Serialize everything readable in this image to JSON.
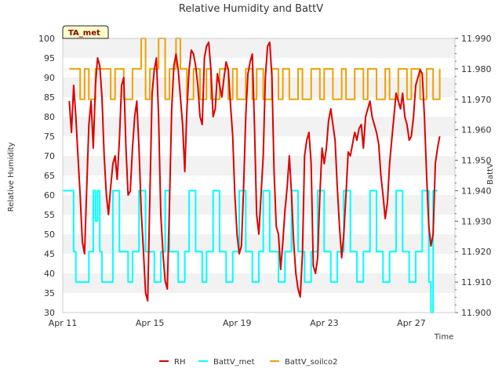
{
  "chart_data": {
    "type": "line",
    "title": "Relative Humidity and BattV",
    "xlabel": "Time",
    "ylabel": "Relative Humidity",
    "y2label": "BattV",
    "badge": "TA_met",
    "x_ticks": [
      "Apr 11",
      "Apr 15",
      "Apr 19",
      "Apr 23",
      "Apr 27"
    ],
    "y_ticks": [
      30,
      35,
      40,
      45,
      50,
      55,
      60,
      65,
      70,
      75,
      80,
      85,
      90,
      95,
      100
    ],
    "y2_ticks": [
      "11.900",
      "11.910",
      "11.920",
      "11.930",
      "11.940",
      "11.950",
      "11.960",
      "11.970",
      "11.980",
      "11.990"
    ],
    "xlim_days": [
      11,
      29
    ],
    "ylim": [
      30,
      100
    ],
    "y2lim": [
      11.9,
      11.99
    ],
    "grid": true,
    "legend_position": "bottom",
    "series": [
      {
        "name": "RH",
        "axis": "left",
        "color": "#dd0000",
        "x": [
          11.3,
          11.4,
          11.5,
          11.6,
          11.7,
          11.8,
          11.9,
          12.0,
          12.1,
          12.2,
          12.3,
          12.4,
          12.5,
          12.6,
          12.7,
          12.8,
          12.9,
          13.0,
          13.1,
          13.2,
          13.3,
          13.4,
          13.5,
          13.6,
          13.7,
          13.8,
          13.9,
          14.0,
          14.1,
          14.2,
          14.3,
          14.4,
          14.5,
          14.6,
          14.7,
          14.8,
          14.9,
          15.0,
          15.1,
          15.2,
          15.3,
          15.4,
          15.5,
          15.6,
          15.7,
          15.8,
          15.9,
          16.0,
          16.1,
          16.2,
          16.3,
          16.4,
          16.5,
          16.6,
          16.7,
          16.8,
          16.9,
          17.0,
          17.1,
          17.2,
          17.3,
          17.4,
          17.5,
          17.6,
          17.7,
          17.8,
          17.9,
          18.0,
          18.1,
          18.2,
          18.3,
          18.4,
          18.5,
          18.6,
          18.7,
          18.8,
          18.9,
          19.0,
          19.1,
          19.2,
          19.3,
          19.4,
          19.5,
          19.6,
          19.7,
          19.8,
          19.9,
          20.0,
          20.1,
          20.2,
          20.3,
          20.4,
          20.5,
          20.6,
          20.7,
          20.8,
          20.9,
          21.0,
          21.1,
          21.2,
          21.3,
          21.4,
          21.5,
          21.6,
          21.7,
          21.8,
          21.9,
          22.0,
          22.1,
          22.2,
          22.3,
          22.4,
          22.5,
          22.6,
          22.7,
          22.8,
          22.9,
          23.0,
          23.1,
          23.2,
          23.3,
          23.4,
          23.5,
          23.6,
          23.7,
          23.8,
          23.9,
          24.0,
          24.1,
          24.2,
          24.3,
          24.4,
          24.5,
          24.6,
          24.7,
          24.8,
          24.9,
          25.0,
          25.1,
          25.2,
          25.3,
          25.4,
          25.5,
          25.6,
          25.7,
          25.8,
          25.9,
          26.0,
          26.1,
          26.2,
          26.3,
          26.4,
          26.5,
          26.6,
          26.7,
          26.8,
          26.9,
          27.0,
          27.1,
          27.2,
          27.3,
          27.4,
          27.5,
          27.6,
          27.7,
          27.8,
          27.9,
          28.0,
          28.1,
          28.2,
          28.3
        ],
        "y": [
          84,
          76,
          88,
          80,
          70,
          60,
          48,
          45,
          62,
          78,
          84,
          72,
          88,
          95,
          93,
          85,
          70,
          60,
          55,
          62,
          68,
          70,
          64,
          74,
          88,
          90,
          72,
          60,
          61,
          72,
          80,
          84,
          72,
          56,
          46,
          35,
          33,
          60,
          86,
          92,
          95,
          80,
          55,
          45,
          38,
          36,
          58,
          82,
          93,
          96,
          92,
          85,
          78,
          66,
          82,
          92,
          97,
          96,
          93,
          88,
          80,
          78,
          95,
          98,
          99,
          92,
          80,
          82,
          91,
          88,
          85,
          90,
          94,
          92,
          83,
          75,
          60,
          50,
          45,
          47,
          62,
          80,
          91,
          94,
          96,
          78,
          55,
          50,
          60,
          70,
          90,
          98,
          99,
          90,
          66,
          52,
          50,
          41,
          48,
          56,
          62,
          70,
          60,
          48,
          40,
          36,
          34,
          45,
          70,
          74,
          76,
          68,
          42,
          40,
          44,
          60,
          72,
          68,
          72,
          79,
          82,
          78,
          74,
          62,
          52,
          44,
          50,
          60,
          71,
          70,
          73,
          76,
          74,
          77,
          78,
          72,
          80,
          82,
          84,
          80,
          78,
          76,
          73,
          65,
          60,
          54,
          58,
          68,
          74,
          80,
          86,
          84,
          82,
          86,
          80,
          78,
          74,
          75,
          80,
          88,
          90,
          92,
          91,
          80,
          65,
          52,
          47,
          50,
          68,
          72,
          75
        ],
        "interp": "linear"
      },
      {
        "name": "BattV_met",
        "axis": "right",
        "color": "#00ffff",
        "x": [
          11.0,
          11.3,
          11.5,
          11.6,
          12.2,
          12.4,
          12.5,
          12.6,
          12.7,
          12.8,
          13.1,
          13.3,
          13.6,
          14.0,
          14.2,
          14.5,
          14.8,
          15.2,
          15.5,
          15.7,
          15.9,
          16.3,
          16.6,
          16.8,
          17.1,
          17.4,
          17.6,
          17.9,
          18.2,
          18.5,
          18.8,
          19.1,
          19.4,
          19.7,
          20.0,
          20.2,
          20.5,
          20.9,
          21.2,
          21.5,
          21.8,
          22.1,
          22.4,
          22.7,
          23.0,
          23.3,
          23.6,
          23.9,
          24.2,
          24.5,
          24.8,
          25.1,
          25.4,
          25.7,
          26.0,
          26.3,
          26.6,
          26.9,
          27.2,
          27.5,
          27.8,
          27.9,
          28.0,
          28.2
        ],
        "y": [
          11.94,
          11.94,
          11.92,
          11.91,
          11.92,
          11.94,
          11.93,
          11.94,
          11.92,
          11.91,
          11.91,
          11.94,
          11.92,
          11.91,
          11.92,
          11.94,
          11.92,
          11.91,
          11.92,
          11.94,
          11.92,
          11.91,
          11.92,
          11.94,
          11.92,
          11.91,
          11.92,
          11.94,
          11.92,
          11.91,
          11.92,
          11.94,
          11.92,
          11.91,
          11.92,
          11.94,
          11.92,
          11.91,
          11.92,
          11.94,
          11.92,
          11.91,
          11.92,
          11.94,
          11.92,
          11.91,
          11.92,
          11.94,
          11.92,
          11.91,
          11.92,
          11.94,
          11.92,
          11.91,
          11.92,
          11.94,
          11.92,
          11.91,
          11.92,
          11.94,
          11.91,
          11.9,
          11.94,
          11.94
        ],
        "interp": "step"
      },
      {
        "name": "BattV_soilco2",
        "axis": "right",
        "color": "#f0a000",
        "x": [
          11.3,
          11.8,
          12.0,
          12.2,
          12.5,
          13.2,
          13.4,
          13.8,
          14.2,
          14.6,
          14.8,
          15.0,
          15.4,
          15.7,
          15.9,
          16.2,
          16.4,
          16.7,
          17.0,
          17.3,
          17.6,
          17.8,
          18.2,
          18.6,
          18.8,
          19.0,
          19.4,
          19.7,
          19.9,
          20.2,
          20.6,
          20.9,
          21.1,
          21.4,
          21.8,
          22.0,
          22.4,
          22.8,
          23.0,
          23.4,
          23.8,
          24.0,
          24.4,
          24.8,
          25.0,
          25.4,
          25.8,
          26.0,
          26.4,
          26.8,
          27.0,
          27.4,
          27.7,
          28.0,
          28.3
        ],
        "y": [
          11.98,
          11.97,
          11.98,
          11.97,
          11.98,
          11.97,
          11.98,
          11.97,
          11.98,
          11.99,
          11.97,
          11.98,
          11.99,
          11.97,
          11.98,
          11.99,
          11.98,
          11.97,
          11.98,
          11.97,
          11.98,
          11.97,
          11.98,
          11.97,
          11.98,
          11.97,
          11.98,
          11.97,
          11.98,
          11.97,
          11.98,
          11.97,
          11.98,
          11.97,
          11.98,
          11.97,
          11.98,
          11.97,
          11.98,
          11.97,
          11.98,
          11.97,
          11.98,
          11.97,
          11.98,
          11.97,
          11.98,
          11.97,
          11.98,
          11.97,
          11.98,
          11.97,
          11.98,
          11.97,
          11.98
        ],
        "interp": "step"
      }
    ]
  }
}
